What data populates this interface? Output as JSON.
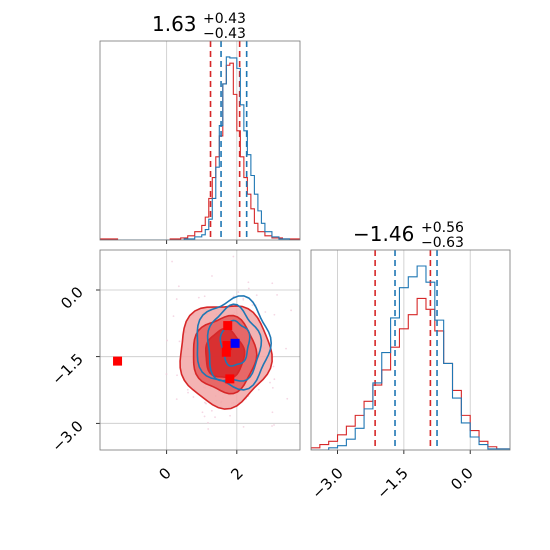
{
  "chart_data": [
    {
      "type": "histogram",
      "panel": "top-left",
      "title": {
        "main": "1.63",
        "upper": "+0.43",
        "lower": "−0.43"
      },
      "xlim": [
        -1.9,
        3.8
      ],
      "x_ticks": [
        0,
        2
      ],
      "grid": true,
      "series": [
        {
          "color": "#d62728",
          "quantiles": [
            1.25,
            2.08
          ],
          "bins": [
            -1.9,
            -1.4,
            -0.9,
            -0.4,
            0.1,
            0.4,
            0.6,
            0.8,
            1.0,
            1.1,
            1.2,
            1.3,
            1.4,
            1.5,
            1.6,
            1.7,
            1.8,
            1.9,
            2.0,
            2.1,
            2.2,
            2.3,
            2.4,
            2.5,
            2.6,
            2.8,
            3.0,
            3.3,
            3.8
          ],
          "counts": [
            1,
            0,
            0,
            0,
            1,
            2,
            4,
            8,
            14,
            22,
            40,
            60,
            80,
            100,
            150,
            168,
            170,
            140,
            105,
            80,
            60,
            44,
            30,
            16,
            8,
            4,
            2,
            1
          ]
        },
        {
          "color": "#1f77b4",
          "quantiles": [
            1.55,
            2.28
          ],
          "bins": [
            -1.9,
            0.5,
            0.8,
            1.0,
            1.1,
            1.2,
            1.3,
            1.4,
            1.5,
            1.6,
            1.7,
            1.8,
            1.9,
            2.0,
            2.1,
            2.2,
            2.3,
            2.4,
            2.5,
            2.6,
            2.7,
            2.8,
            3.0,
            3.2,
            3.5,
            3.8
          ],
          "counts": [
            0,
            1,
            3,
            5,
            10,
            20,
            40,
            70,
            110,
            150,
            176,
            175,
            175,
            165,
            130,
            105,
            82,
            62,
            44,
            28,
            16,
            8,
            3,
            1,
            0
          ]
        }
      ]
    },
    {
      "type": "scatter",
      "panel": "bottom-left",
      "xlim": [
        -1.9,
        3.8
      ],
      "ylim": [
        -3.6,
        0.9
      ],
      "x_ticks": [
        0,
        2
      ],
      "y_ticks": [
        "0.0",
        "−1.5",
        "−3.0"
      ],
      "grid": true,
      "red_points": [
        [
          -1.4,
          -1.6
        ],
        [
          1.74,
          -0.8
        ],
        [
          1.7,
          -1.4
        ],
        [
          1.8,
          -2.0
        ],
        [
          1.72,
          -1.25
        ]
      ],
      "blue_points": [
        [
          1.95,
          -1.2
        ]
      ],
      "red_contours": [
        {
          "cx": 1.65,
          "cy": -1.45,
          "rx": 1.3,
          "ry": 1.15,
          "fill": "#f2a6a6"
        },
        {
          "cx": 1.65,
          "cy": -1.45,
          "rx": 0.9,
          "ry": 0.85,
          "fill": "#e45a5a"
        },
        {
          "cx": 1.65,
          "cy": -1.45,
          "rx": 0.55,
          "ry": 0.55,
          "fill": "#d62728"
        }
      ],
      "blue_contours": [
        {
          "cx": 1.9,
          "cy": -1.2,
          "rx": 1.05,
          "ry": 1.0
        },
        {
          "cx": 1.9,
          "cy": -1.25,
          "rx": 0.75,
          "ry": 0.85
        },
        {
          "cx": 1.95,
          "cy": -1.2,
          "rx": 0.4,
          "ry": 0.5
        }
      ]
    },
    {
      "type": "histogram",
      "panel": "bottom-right",
      "title": {
        "main": "−1.46",
        "upper": "+0.56",
        "lower": "−0.63"
      },
      "xlim": [
        -3.6,
        0.9
      ],
      "x_ticks": [
        "−3.0",
        "−1.5",
        "0.0"
      ],
      "grid": true,
      "series": [
        {
          "color": "#d62728",
          "quantiles": [
            -2.15,
            -0.9
          ],
          "bins": [
            -3.6,
            -3.4,
            -3.2,
            -3.0,
            -2.8,
            -2.6,
            -2.4,
            -2.2,
            -2.0,
            -1.8,
            -1.6,
            -1.4,
            -1.2,
            -1.0,
            -0.8,
            -0.6,
            -0.4,
            -0.2,
            0.0,
            0.2,
            0.4,
            0.6,
            0.9
          ],
          "counts": [
            2,
            5,
            8,
            14,
            22,
            32,
            45,
            60,
            74,
            95,
            112,
            125,
            140,
            130,
            110,
            80,
            55,
            32,
            18,
            8,
            3,
            1
          ]
        },
        {
          "color": "#1f77b4",
          "quantiles": [
            -1.7,
            -0.75
          ],
          "bins": [
            -3.6,
            -3.2,
            -3.0,
            -2.8,
            -2.6,
            -2.4,
            -2.2,
            -2.0,
            -1.8,
            -1.6,
            -1.4,
            -1.2,
            -1.0,
            -0.8,
            -0.6,
            -0.4,
            -0.2,
            0.0,
            0.2,
            0.4,
            0.9
          ],
          "counts": [
            0,
            2,
            4,
            10,
            20,
            38,
            62,
            90,
            122,
            150,
            160,
            170,
            155,
            120,
            80,
            48,
            25,
            12,
            5,
            1
          ]
        }
      ]
    }
  ]
}
